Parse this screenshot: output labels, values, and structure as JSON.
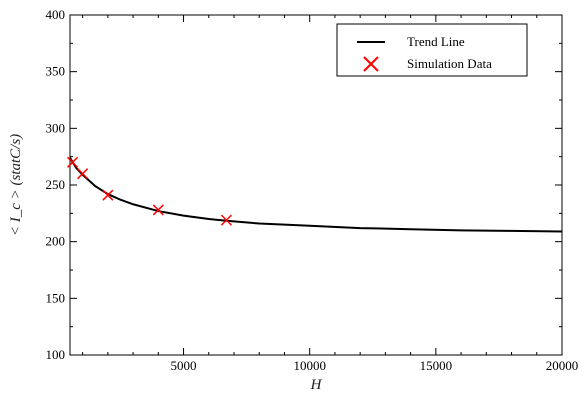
{
  "chart_data": {
    "type": "line",
    "title": "",
    "xlabel": "H",
    "ylabel": "< I_c > (statC/s)",
    "xlim": [
      500,
      20000
    ],
    "ylim": [
      100,
      400
    ],
    "x_ticks": [
      5000,
      10000,
      15000,
      20000
    ],
    "y_ticks": [
      100,
      150,
      200,
      250,
      300,
      350,
      400
    ],
    "grid": false,
    "legend_position": "top-right",
    "series": [
      {
        "name": "Trend Line",
        "style": "line",
        "color": "#000000",
        "x": [
          500,
          750,
          1000,
          1500,
          2000,
          2500,
          3000,
          4000,
          5000,
          6000,
          6700,
          8000,
          10000,
          12000,
          14000,
          16000,
          18000,
          20000
        ],
        "y": [
          274,
          265,
          259,
          249,
          242,
          237,
          233,
          227,
          223,
          220,
          218.5,
          216,
          214,
          212,
          211,
          210,
          209.5,
          209
        ]
      },
      {
        "name": "Simulation Data",
        "style": "marker",
        "marker": "x",
        "color": "#ff0000",
        "x": [
          600,
          1000,
          2000,
          4000,
          6700
        ],
        "y": [
          270,
          260,
          241,
          228,
          219
        ]
      }
    ]
  }
}
